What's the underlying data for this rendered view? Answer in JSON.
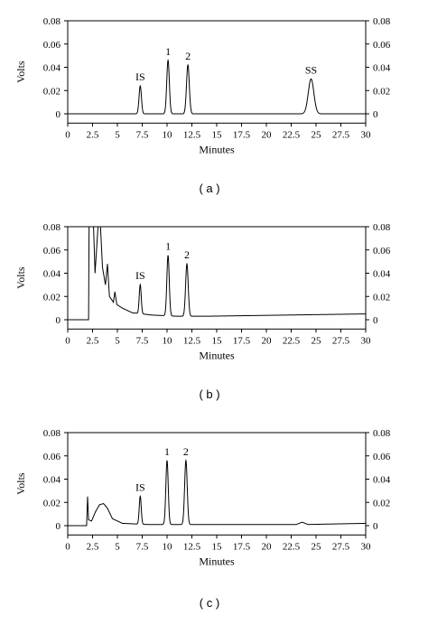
{
  "chart_data": [
    {
      "type": "line",
      "panel_label": "( a )",
      "xlabel": "Minutes",
      "ylabel": "Volts",
      "xlim": [
        0,
        30
      ],
      "ylim": [
        -0.008,
        0.08
      ],
      "xticks": [
        "0",
        "2.5",
        "5",
        "7.5",
        "10",
        "12.5",
        "15",
        "17.5",
        "20",
        "22.5",
        "25",
        "27.5",
        "30"
      ],
      "yticks": [
        "0",
        "0.02",
        "0.04",
        "0.06",
        "0.08"
      ],
      "secondary_y": true,
      "grid": false,
      "baseline": 0.0,
      "features": [],
      "peaks": [
        {
          "label": "IS",
          "x": 7.3,
          "height": 0.024,
          "sigma": 0.12
        },
        {
          "label": "1",
          "x": 10.1,
          "height": 0.046,
          "sigma": 0.13
        },
        {
          "label": "2",
          "x": 12.1,
          "height": 0.042,
          "sigma": 0.14
        },
        {
          "label": "SS",
          "x": 24.5,
          "height": 0.03,
          "sigma": 0.28
        }
      ]
    },
    {
      "type": "line",
      "panel_label": "( b )",
      "xlabel": "Minutes",
      "ylabel": "Volts",
      "xlim": [
        0,
        30
      ],
      "ylim": [
        -0.008,
        0.08
      ],
      "xticks": [
        "0",
        "2.5",
        "5",
        "7.5",
        "10",
        "12.5",
        "15",
        "17.5",
        "20",
        "22.5",
        "25",
        "27.5",
        "30"
      ],
      "yticks": [
        "0",
        "0.02",
        "0.04",
        "0.06",
        "0.08"
      ],
      "secondary_y": true,
      "grid": false,
      "baseline": 0.0,
      "features": [
        {
          "x": 2.1,
          "y": 0.0
        },
        {
          "x": 2.15,
          "y": 0.08
        },
        {
          "x": 2.6,
          "y": 0.08
        },
        {
          "x": 2.75,
          "y": 0.04
        },
        {
          "x": 2.9,
          "y": 0.06
        },
        {
          "x": 3.05,
          "y": 0.08
        },
        {
          "x": 3.3,
          "y": 0.08
        },
        {
          "x": 3.5,
          "y": 0.045
        },
        {
          "x": 3.8,
          "y": 0.03
        },
        {
          "x": 4.0,
          "y": 0.048
        },
        {
          "x": 4.2,
          "y": 0.02
        },
        {
          "x": 4.6,
          "y": 0.015
        },
        {
          "x": 4.75,
          "y": 0.024
        },
        {
          "x": 4.95,
          "y": 0.013
        },
        {
          "x": 5.5,
          "y": 0.01
        },
        {
          "x": 6.5,
          "y": 0.006
        },
        {
          "x": 8.5,
          "y": 0.004
        },
        {
          "x": 11.0,
          "y": 0.003
        },
        {
          "x": 14.0,
          "y": 0.003
        },
        {
          "x": 30.0,
          "y": 0.005
        }
      ],
      "peaks": [
        {
          "label": "IS",
          "x": 7.3,
          "height": 0.025,
          "sigma": 0.1
        },
        {
          "label": "1",
          "x": 10.1,
          "height": 0.052,
          "sigma": 0.12
        },
        {
          "label": "2",
          "x": 12.0,
          "height": 0.045,
          "sigma": 0.13
        }
      ]
    },
    {
      "type": "line",
      "panel_label": "( c )",
      "xlabel": "Minutes",
      "ylabel": "Volts",
      "xlim": [
        0,
        30
      ],
      "ylim": [
        -0.008,
        0.08
      ],
      "xticks": [
        "0",
        "2.5",
        "5",
        "7.5",
        "10",
        "12.5",
        "15",
        "17.5",
        "20",
        "22.5",
        "25",
        "27.5",
        "30"
      ],
      "yticks": [
        "0",
        "0.02",
        "0.04",
        "0.06",
        "0.08"
      ],
      "secondary_y": true,
      "grid": false,
      "baseline": 0.0,
      "features": [
        {
          "x": 1.9,
          "y": 0.0
        },
        {
          "x": 2.0,
          "y": 0.025
        },
        {
          "x": 2.1,
          "y": 0.005
        },
        {
          "x": 2.4,
          "y": 0.004
        },
        {
          "x": 2.8,
          "y": 0.012
        },
        {
          "x": 3.2,
          "y": 0.018
        },
        {
          "x": 3.6,
          "y": 0.019
        },
        {
          "x": 4.0,
          "y": 0.015
        },
        {
          "x": 4.5,
          "y": 0.006
        },
        {
          "x": 5.5,
          "y": 0.002
        },
        {
          "x": 8.0,
          "y": 0.001
        },
        {
          "x": 23.0,
          "y": 0.001
        },
        {
          "x": 23.6,
          "y": 0.003
        },
        {
          "x": 24.2,
          "y": 0.001
        },
        {
          "x": 30.0,
          "y": 0.002
        }
      ],
      "peaks": [
        {
          "label": "IS",
          "x": 7.3,
          "height": 0.024,
          "sigma": 0.1
        },
        {
          "label": "1",
          "x": 10.0,
          "height": 0.055,
          "sigma": 0.12
        },
        {
          "label": "2",
          "x": 11.9,
          "height": 0.055,
          "sigma": 0.13
        }
      ]
    }
  ]
}
